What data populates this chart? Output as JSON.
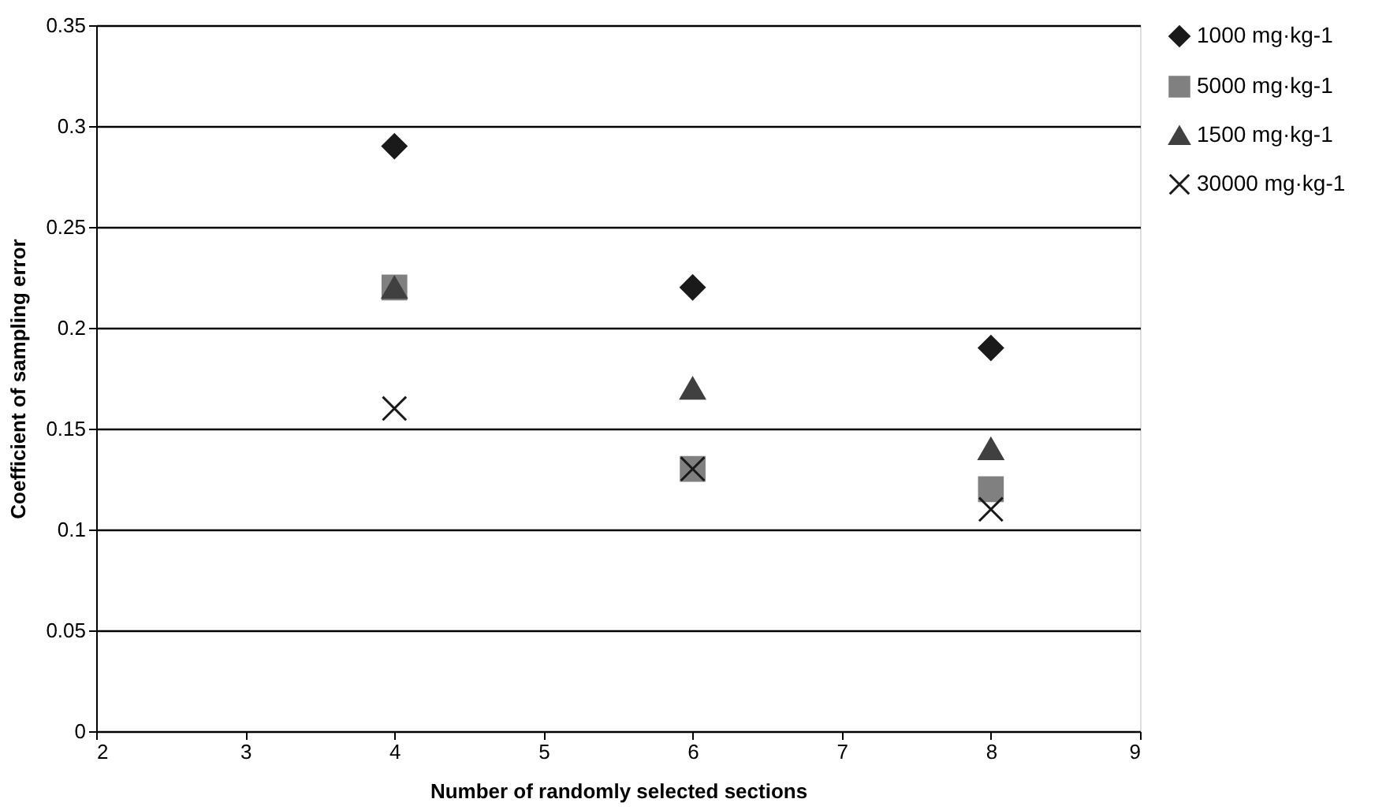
{
  "chart_data": {
    "type": "scatter",
    "xlabel": "Number of randomly selected sections",
    "ylabel": "Coefficient of sampling error",
    "x": [
      4,
      6,
      8
    ],
    "xlim": [
      2,
      9
    ],
    "xticks": [
      2,
      3,
      4,
      5,
      6,
      7,
      8,
      9
    ],
    "ylim": [
      0,
      0.35
    ],
    "yticks": [
      0,
      0.05,
      0.1,
      0.15,
      0.2,
      0.25,
      0.3,
      0.35
    ],
    "grid": "y",
    "legend": "right",
    "series": [
      {
        "name": "1000 mg·kg-1",
        "color": "#1a1a1a",
        "marker": "diamond",
        "values": [
          0.29,
          0.22,
          0.19
        ]
      },
      {
        "name": "5000 mg·kg-1",
        "color": "#808080",
        "marker": "square",
        "values": [
          0.22,
          0.13,
          0.12
        ]
      },
      {
        "name": "1500 mg·kg-1",
        "color": "#404040",
        "marker": "triangle",
        "values": [
          0.22,
          0.17,
          0.14
        ]
      },
      {
        "name": "30000 mg·kg-1",
        "color": "#1a1a1a",
        "marker": "cross",
        "values": [
          0.16,
          0.13,
          0.11
        ]
      }
    ]
  }
}
